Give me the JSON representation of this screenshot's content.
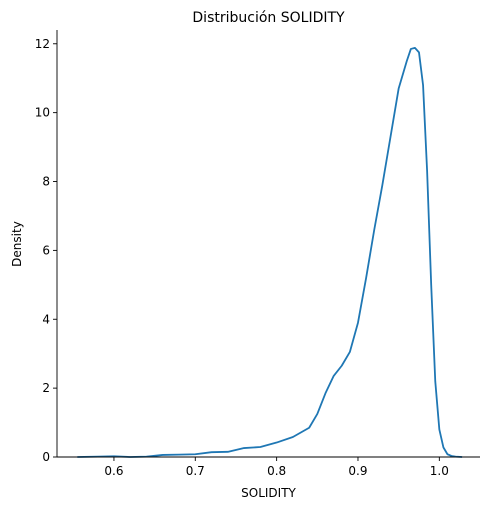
{
  "chart_data": {
    "type": "line",
    "title": "Distribución SOLIDITY",
    "xlabel": "SOLIDITY",
    "ylabel": "Density",
    "xlim": [
      0.53,
      1.05
    ],
    "ylim": [
      0,
      12.4
    ],
    "xticks": [
      "0.6",
      "0.7",
      "0.8",
      "0.9",
      "1.0"
    ],
    "xtick_values": [
      0.6,
      0.7,
      0.8,
      0.9,
      1.0
    ],
    "yticks": [
      "0",
      "2",
      "4",
      "6",
      "8",
      "10",
      "12"
    ],
    "ytick_values": [
      0,
      2,
      4,
      6,
      8,
      10,
      12
    ],
    "grid": false,
    "line_color": "#1f77b4",
    "series": [
      {
        "x": [
          0.555,
          0.58,
          0.6,
          0.62,
          0.64,
          0.66,
          0.68,
          0.7,
          0.72,
          0.74,
          0.76,
          0.78,
          0.8,
          0.82,
          0.84,
          0.85,
          0.86,
          0.87,
          0.88,
          0.89,
          0.9,
          0.91,
          0.92,
          0.93,
          0.94,
          0.95,
          0.96,
          0.965,
          0.97,
          0.975,
          0.98,
          0.985,
          0.99,
          0.995,
          1.0,
          1.005,
          1.01,
          1.015,
          1.02,
          1.028
        ],
        "y": [
          0.0,
          0.01,
          0.02,
          0.0,
          0.01,
          0.06,
          0.07,
          0.08,
          0.14,
          0.15,
          0.26,
          0.29,
          0.42,
          0.58,
          0.85,
          1.25,
          1.85,
          2.35,
          2.65,
          3.05,
          3.9,
          5.2,
          6.6,
          7.9,
          9.3,
          10.7,
          11.5,
          11.85,
          11.88,
          11.75,
          10.8,
          8.3,
          5.0,
          2.2,
          0.8,
          0.28,
          0.08,
          0.03,
          0.01,
          0.0
        ]
      }
    ]
  }
}
